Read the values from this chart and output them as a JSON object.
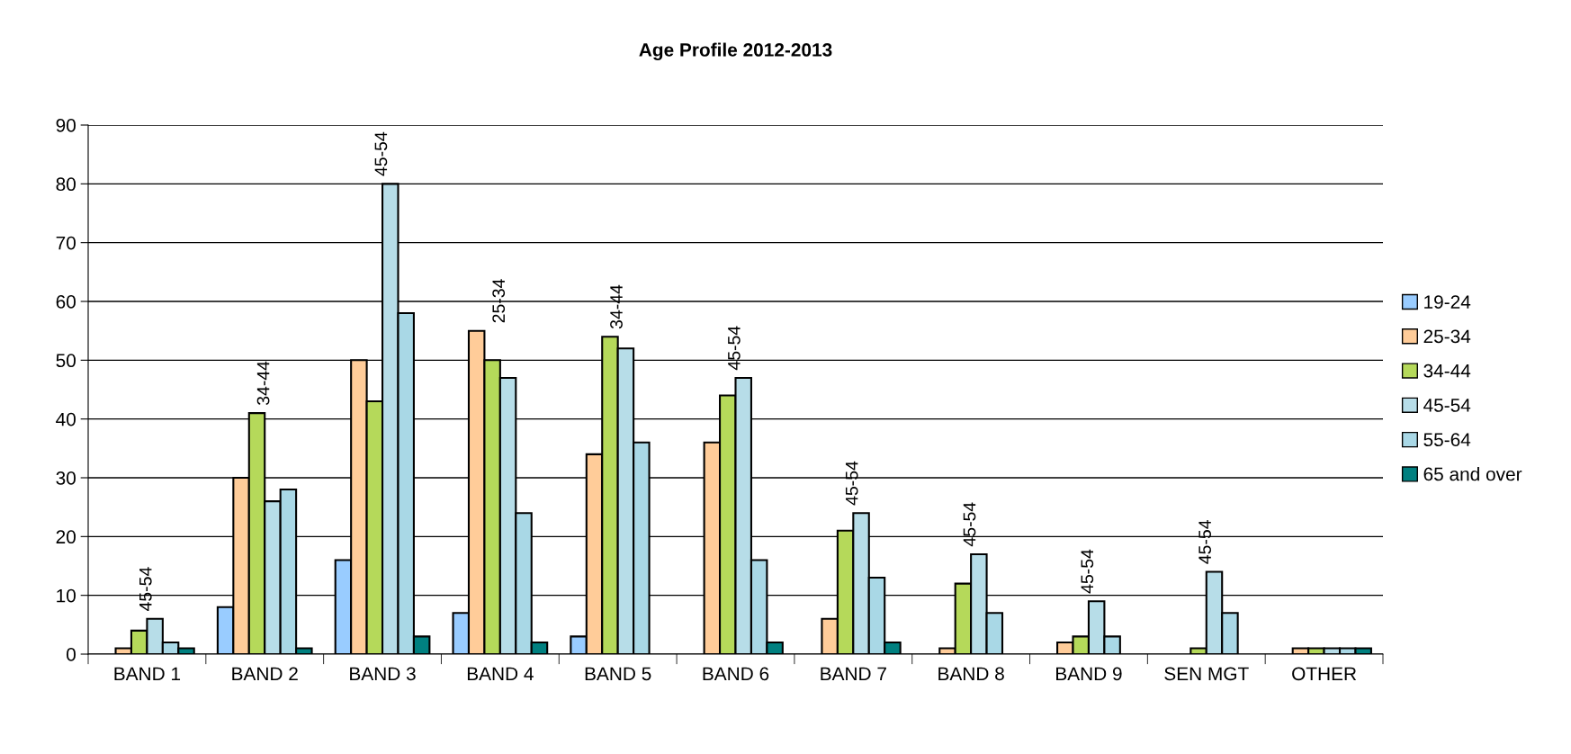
{
  "chart_data": {
    "type": "bar",
    "title": "Age Profile 2012-2013",
    "categories": [
      "BAND 1",
      "BAND 2",
      "BAND 3",
      "BAND 4",
      "BAND 5",
      "BAND 6",
      "BAND 7",
      "BAND 8",
      "BAND 9",
      "SEN MGT",
      "OTHER"
    ],
    "series": [
      {
        "name": "19-24",
        "color": "#99ccff",
        "values": [
          null,
          8,
          16,
          7,
          3,
          null,
          null,
          null,
          null,
          null,
          null
        ]
      },
      {
        "name": "25-34",
        "color": "#ffcc99",
        "values": [
          1,
          30,
          50,
          55,
          34,
          36,
          6,
          1,
          2,
          null,
          1
        ]
      },
      {
        "name": "34-44",
        "color": "#b5d95a",
        "values": [
          4,
          41,
          43,
          50,
          54,
          44,
          21,
          12,
          3,
          1,
          1
        ]
      },
      {
        "name": "45-54",
        "color": "#b7dde8",
        "values": [
          6,
          26,
          80,
          47,
          52,
          47,
          24,
          17,
          9,
          14,
          1
        ]
      },
      {
        "name": "55-64",
        "color": "#a9d8e6",
        "values": [
          2,
          28,
          58,
          24,
          36,
          16,
          13,
          7,
          3,
          7,
          1
        ]
      },
      {
        "name": "65 and over",
        "color": "#008080",
        "values": [
          1,
          1,
          3,
          2,
          null,
          2,
          2,
          null,
          null,
          null,
          1
        ]
      }
    ],
    "ylim": [
      0,
      90
    ],
    "yticks": [
      0,
      10,
      20,
      30,
      40,
      50,
      60,
      70,
      80,
      90
    ],
    "grid": "y",
    "legend": "right",
    "annotations": [
      "45-54",
      "34-44",
      "45-54",
      "25-34",
      "34-44",
      "45-54",
      "45-54",
      "45-54",
      "45-54",
      "45-54"
    ]
  }
}
